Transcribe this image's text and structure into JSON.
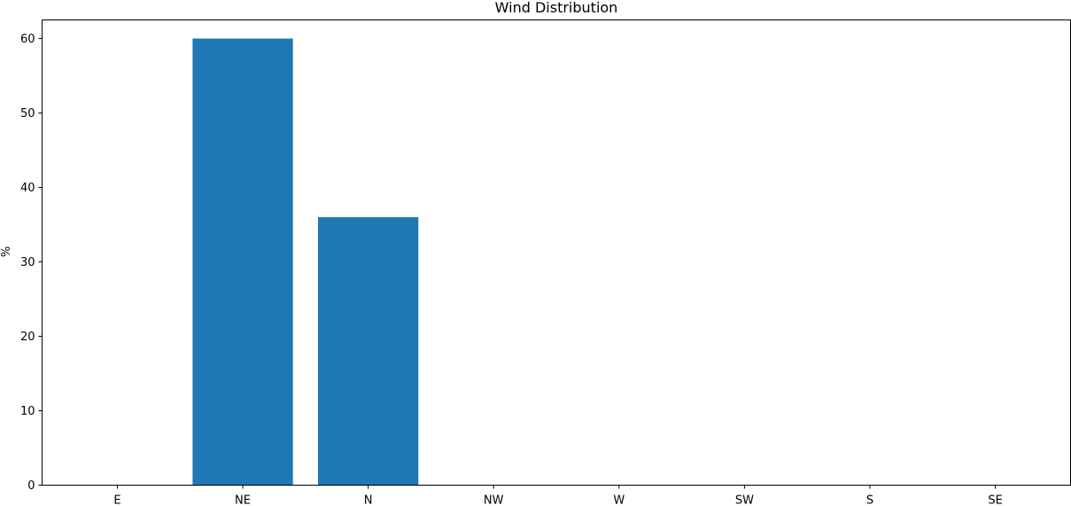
{
  "chart_data": {
    "type": "bar",
    "title": "Wind Distribution",
    "xlabel": "",
    "ylabel": "%",
    "categories": [
      "E",
      "NE",
      "N",
      "NW",
      "W",
      "SW",
      "S",
      "SE"
    ],
    "values": [
      0,
      60,
      36,
      0,
      0,
      0,
      0,
      0
    ],
    "ylim": [
      0,
      62.5
    ],
    "yticks": [
      0,
      10,
      20,
      30,
      40,
      50,
      60
    ],
    "bar_color": "#1f77b4",
    "grid": false,
    "legend": "none"
  }
}
